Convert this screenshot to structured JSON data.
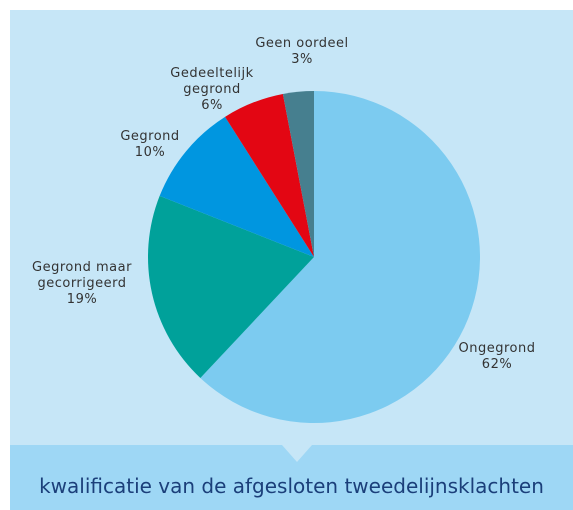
{
  "chart_data": {
    "type": "pie",
    "title": "kwalificatie van de afgesloten tweedelijnsklachten",
    "categories": [
      "Ongegrond",
      "Gegrond maar gecorrigeerd",
      "Gegrond",
      "Gedeeltelijk gegrond",
      "Geen oordeel"
    ],
    "values": [
      62,
      19,
      10,
      6,
      3
    ],
    "value_labels": [
      "62%",
      "19%",
      "10%",
      "6%",
      "3%"
    ],
    "colors": [
      "#7ccbf0",
      "#00a19a",
      "#0096e0",
      "#e30613",
      "#467f8f"
    ]
  }
}
